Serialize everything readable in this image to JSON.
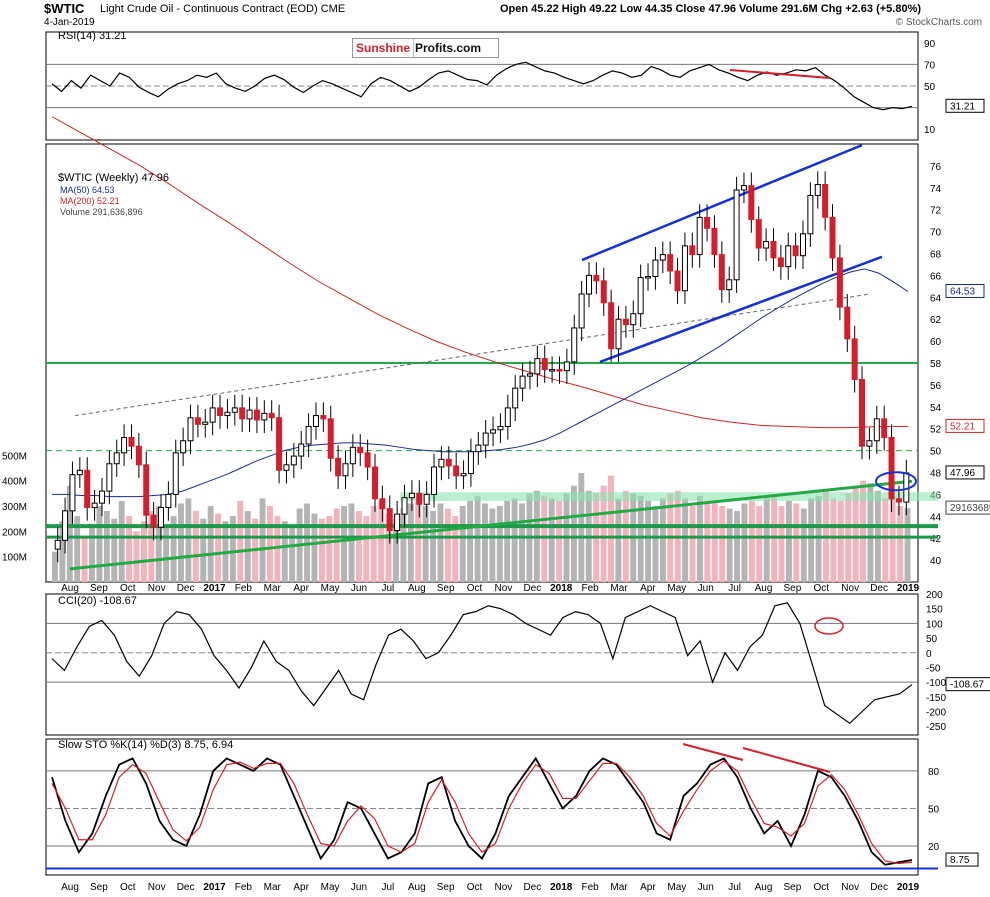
{
  "header": {
    "symbol": "$WTIC",
    "title": "Light Crude Oil - Continuous Contract (EOD)",
    "exchange": "CME",
    "date": "4-Jan-2019",
    "ohlc": "Open 45.22  High 49.22  Low 44.35  Close 47.96  Volume 291.6M  Chg +2.63 (+5.80%)",
    "watermark": "© StockCharts.com"
  },
  "brand": {
    "left": "Sunshine",
    "right": "Profits.com"
  },
  "colors": {
    "up": "#ffffff",
    "down": "#d21f2b",
    "ma50": "#1a2b8c",
    "ma200": "#c8252a",
    "channel": "#1432d4",
    "support": "#22aa44",
    "volume_up": "#b4b4b4",
    "volume_down": "#f2b3bc"
  },
  "chart_data": [
    {
      "type": "line",
      "title": "RSI(14) 31.21",
      "ylim": [
        0,
        100
      ],
      "y_ticks": [
        10,
        50,
        70,
        90
      ],
      "last_value_label": "31.21",
      "values": [
        52,
        45,
        55,
        48,
        60,
        55,
        50,
        62,
        58,
        49,
        44,
        40,
        47,
        52,
        55,
        60,
        58,
        62,
        52,
        48,
        45,
        50,
        57,
        60,
        56,
        49,
        44,
        50,
        55,
        52,
        48,
        44,
        40,
        52,
        58,
        55,
        50,
        45,
        49,
        56,
        62,
        64,
        60,
        56,
        55,
        51,
        60,
        66,
        70,
        72,
        68,
        64,
        62,
        58,
        55,
        52,
        55,
        60,
        64,
        62,
        58,
        60,
        68,
        65,
        60,
        58,
        64,
        67,
        70,
        65,
        62,
        58,
        55,
        60,
        63,
        60,
        62,
        65,
        64,
        67,
        60,
        55,
        48,
        40,
        35,
        30,
        28,
        30,
        29,
        31.21
      ]
    },
    {
      "type": "candlestick",
      "title": "$WTIC (Weekly) 47.96",
      "legend": [
        "MA(50) 64.53",
        "MA(200) 52.21",
        "Volume 291,636,896"
      ],
      "ylim": [
        38,
        78
      ],
      "y_ticks": [
        40,
        42,
        44,
        46,
        48,
        50,
        52,
        54,
        56,
        58,
        60,
        62,
        64,
        66,
        68,
        70,
        72,
        74,
        76
      ],
      "x_ticks": [
        "Aug",
        "Sep",
        "Oct",
        "Nov",
        "Dec",
        "2017",
        "Feb",
        "Mar",
        "Apr",
        "May",
        "Jun",
        "Jul",
        "Aug",
        "Sep",
        "Oct",
        "Nov",
        "Dec",
        "2018",
        "Feb",
        "Mar",
        "Apr",
        "May",
        "Jun",
        "Jul",
        "Aug",
        "Sep",
        "Oct",
        "Nov",
        "Dec",
        "2019"
      ],
      "volume_axis": [
        "100M",
        "200M",
        "300M",
        "400M",
        "500M"
      ],
      "last_labels": {
        "close": "47.96",
        "ma50": "64.53",
        "ma200": "52.21",
        "volume": "291636896"
      },
      "closes": [
        41.8,
        44.5,
        47.8,
        48.2,
        44.8,
        45.2,
        46.3,
        48.8,
        49.8,
        51.2,
        50.4,
        48.7,
        44.1,
        43.0,
        44.8,
        46.0,
        49.8,
        50.9,
        53.0,
        52.4,
        52.6,
        53.9,
        53.2,
        53.5,
        53.9,
        52.9,
        53.7,
        52.8,
        53.4,
        53.0,
        48.2,
        48.7,
        49.5,
        50.6,
        52.2,
        53.2,
        52.9,
        49.3,
        47.7,
        48.8,
        50.3,
        49.8,
        48.5,
        45.6,
        44.7,
        42.7,
        44.2,
        45.7,
        46.1,
        45.1,
        46.0,
        48.5,
        49.2,
        48.6,
        47.7,
        47.9,
        49.9,
        50.5,
        51.6,
        51.9,
        52.2,
        53.9,
        55.7,
        56.8,
        57.0,
        58.4,
        57.4,
        57.4,
        57.3,
        58.1,
        61.2,
        64.3,
        66.0,
        65.5,
        63.5,
        59.3,
        62.0,
        61.5,
        62.5,
        65.8,
        65.9,
        67.4,
        67.9,
        66.4,
        64.6,
        68.7,
        67.9,
        71.3,
        70.3,
        67.9,
        64.7,
        65.6,
        73.8,
        74.2,
        71.1,
        68.5,
        69.1,
        67.6,
        66.8,
        68.7,
        67.8,
        69.8,
        73.3,
        74.3,
        71.3,
        67.6,
        63.1,
        60.2,
        56.5,
        50.4,
        50.9,
        52.9,
        51.2,
        45.6,
        45.3,
        47.96
      ],
      "ma50": [
        46.0,
        46.0,
        45.9,
        45.9,
        45.8,
        45.8,
        45.8,
        45.9,
        46.0,
        46.3,
        46.8,
        47.3,
        47.8,
        48.4,
        49.0,
        49.5,
        50.0,
        50.3,
        50.5,
        50.6,
        50.7,
        50.7,
        50.6,
        50.5,
        50.3,
        50.1,
        50.0,
        49.9,
        49.9,
        49.9,
        50.0,
        50.1,
        50.3,
        50.6,
        51.0,
        51.6,
        52.3,
        53.0,
        53.7,
        54.4,
        55.1,
        55.8,
        56.5,
        57.2,
        57.9,
        58.7,
        59.5,
        60.4,
        61.3,
        62.2,
        63.0,
        63.8,
        64.5,
        65.2,
        65.8,
        66.3,
        66.6,
        66.2,
        65.4,
        64.53
      ],
      "ma200": [
        80.5,
        79.0,
        77.5,
        76.0,
        74.3,
        72.5,
        70.8,
        69.0,
        67.2,
        65.5,
        64.0,
        62.5,
        61.2,
        60.0,
        59.0,
        58.1,
        57.3,
        56.5,
        55.8,
        55.0,
        54.2,
        53.6,
        53.0,
        52.6,
        52.3,
        52.2,
        52.1,
        52.1,
        52.2,
        52.21
      ],
      "volume_m": [
        120,
        240,
        380,
        260,
        180,
        230,
        300,
        280,
        250,
        320,
        260,
        200,
        240,
        280,
        300,
        220,
        260,
        310,
        330,
        280,
        250,
        300,
        270,
        240,
        260,
        320,
        280,
        250,
        330,
        300,
        260,
        240,
        220,
        290,
        310,
        270,
        250,
        260,
        290,
        300,
        310,
        280,
        260,
        300,
        320,
        270,
        250,
        290,
        310,
        330,
        300,
        280,
        310,
        290,
        260,
        300,
        320,
        340,
        310,
        290,
        300,
        320,
        330,
        310,
        350,
        360,
        340,
        330,
        320,
        350,
        380,
        430,
        360,
        350,
        380,
        420,
        330,
        360,
        350,
        340,
        320,
        300,
        330,
        350,
        360,
        330,
        300,
        340,
        320,
        310,
        300,
        290,
        280,
        310,
        320,
        300,
        330,
        340,
        300,
        320,
        310,
        290,
        330,
        340,
        360,
        330,
        320,
        350,
        380,
        400,
        390,
        360,
        330,
        340,
        300,
        291.6
      ]
    },
    {
      "type": "line",
      "title": "CCI(20) -108.67",
      "ylim": [
        -250,
        200
      ],
      "y_ticks": [
        200,
        150,
        100,
        50,
        0,
        -50,
        -100,
        -150,
        -200,
        -250
      ],
      "last_value_label": "-108.67",
      "values": [
        -20,
        -60,
        20,
        90,
        110,
        60,
        -30,
        -80,
        -10,
        100,
        140,
        130,
        80,
        -10,
        -60,
        -120,
        -50,
        40,
        -30,
        -60,
        -130,
        -180,
        -120,
        -60,
        -140,
        -160,
        -40,
        60,
        80,
        40,
        -20,
        0,
        60,
        130,
        140,
        160,
        150,
        130,
        100,
        80,
        60,
        120,
        140,
        130,
        100,
        -20,
        120,
        140,
        160,
        140,
        120,
        -10,
        40,
        -100,
        0,
        -60,
        20,
        60,
        160,
        170,
        100,
        -40,
        -180,
        -210,
        -240,
        -200,
        -160,
        -150,
        -140,
        -108.67
      ]
    },
    {
      "type": "line",
      "title": "Slow STO %K(14) %D(3) 8.75, 6.94",
      "series": [
        {
          "name": "%K(14)",
          "color": "#000000",
          "values": [
            75,
            40,
            15,
            30,
            60,
            85,
            90,
            70,
            40,
            25,
            20,
            45,
            80,
            90,
            85,
            80,
            90,
            85,
            60,
            35,
            10,
            25,
            55,
            50,
            30,
            10,
            15,
            30,
            70,
            75,
            40,
            20,
            10,
            30,
            60,
            75,
            90,
            70,
            50,
            60,
            80,
            90,
            85,
            70,
            55,
            30,
            25,
            60,
            70,
            85,
            90,
            75,
            50,
            30,
            40,
            20,
            45,
            80,
            75,
            60,
            40,
            15,
            5,
            7,
            8.75
          ]
        },
        {
          "name": "%D(3)",
          "color": "#d21f2b",
          "values": [
            70,
            50,
            25,
            25,
            45,
            75,
            85,
            78,
            55,
            33,
            24,
            35,
            65,
            85,
            87,
            82,
            86,
            86,
            70,
            45,
            22,
            20,
            40,
            52,
            42,
            20,
            15,
            22,
            55,
            73,
            55,
            30,
            15,
            22,
            50,
            70,
            85,
            78,
            58,
            58,
            72,
            86,
            86,
            75,
            60,
            38,
            28,
            48,
            65,
            80,
            88,
            80,
            58,
            38,
            35,
            28,
            38,
            68,
            77,
            65,
            45,
            22,
            8,
            6,
            6.94
          ]
        }
      ],
      "ylim": [
        0,
        100
      ],
      "y_ticks": [
        20,
        50,
        80
      ],
      "last_value_label": "8.75"
    }
  ]
}
